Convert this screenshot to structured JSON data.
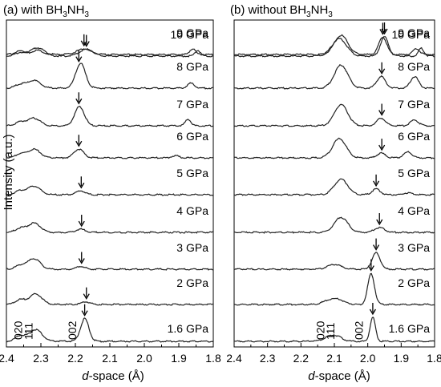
{
  "figure": {
    "ylabel": "Intensity (a.u.)",
    "xlabel_italic": "d",
    "xlabel_rest": "-space (Å)"
  },
  "chart_data": [
    {
      "type": "line",
      "title_prefix": "(a) with BH",
      "title_sub1": "3",
      "title_mid": "NH",
      "title_sub2": "3",
      "xlim": [
        2.4,
        1.8
      ],
      "xticks": [
        "2.4",
        "2.3",
        "2.2",
        "2.1",
        "2.0",
        "1.9",
        "1.8"
      ],
      "xtick_values": [
        2.4,
        2.3,
        2.2,
        2.1,
        2.0,
        1.9,
        1.8
      ],
      "grid": false,
      "peak_labels": [
        {
          "text": "020",
          "x": 2.355
        },
        {
          "text": "111",
          "x": 2.325
        },
        {
          "text": "002",
          "x": 2.198
        }
      ],
      "series": [
        {
          "name": "1.6 GPa",
          "peaks": [
            [
              2.36,
              0.3,
              0.014
            ],
            [
              2.315,
              0.62,
              0.018
            ],
            [
              2.173,
              1.18,
              0.012
            ]
          ],
          "arrow": 2.173
        },
        {
          "name": "2 GPa",
          "peaks": [
            [
              2.36,
              0.25,
              0.014
            ],
            [
              2.315,
              0.55,
              0.018
            ],
            [
              2.17,
              0.14,
              0.012
            ]
          ],
          "arrow": 2.168
        },
        {
          "name": "3 GPa",
          "peaks": [
            [
              2.36,
              0.2,
              0.014
            ],
            [
              2.32,
              0.55,
              0.018
            ],
            [
              2.185,
              0.15,
              0.012
            ]
          ],
          "arrow": 2.182
        },
        {
          "name": "4 GPa",
          "peaks": [
            [
              2.36,
              0.2,
              0.014
            ],
            [
              2.32,
              0.48,
              0.018
            ],
            [
              2.185,
              0.17,
              0.013
            ]
          ],
          "arrow": 2.182
        },
        {
          "name": "5 GPa",
          "peaks": [
            [
              2.36,
              0.2,
              0.014
            ],
            [
              2.32,
              0.45,
              0.018
            ],
            [
              2.185,
              0.2,
              0.013
            ]
          ],
          "arrow": 2.183
        },
        {
          "name": "6 GPa",
          "peaks": [
            [
              2.36,
              0.2,
              0.014
            ],
            [
              2.32,
              0.45,
              0.018
            ],
            [
              2.19,
              0.45,
              0.014
            ],
            [
              1.91,
              0.12,
              0.01
            ]
          ],
          "arrow": 2.19
        },
        {
          "name": "7 GPa",
          "peaks": [
            [
              2.36,
              0.2,
              0.014
            ],
            [
              2.32,
              0.4,
              0.018
            ],
            [
              2.188,
              1.0,
              0.014
            ],
            [
              1.873,
              0.35,
              0.008
            ]
          ],
          "arrow": 2.19
        },
        {
          "name": "8 GPa",
          "peaks": [
            [
              2.36,
              0.2,
              0.014
            ],
            [
              2.32,
              0.4,
              0.018
            ],
            [
              2.185,
              1.3,
              0.014
            ],
            [
              1.865,
              0.25,
              0.01
            ]
          ],
          "arrow": 2.19
        },
        {
          "name": "9 GPa",
          "peaks": [
            [
              2.36,
              0.18,
              0.014
            ],
            [
              2.31,
              0.35,
              0.018
            ],
            [
              2.175,
              0.3,
              0.02
            ],
            [
              1.86,
              0.3,
              0.008
            ]
          ],
          "arrow": 2.175
        },
        {
          "name": "10 GPa",
          "peaks": [
            [
              2.36,
              0.18,
              0.014
            ],
            [
              2.31,
              0.3,
              0.02
            ],
            [
              2.168,
              0.35,
              0.02
            ],
            [
              1.845,
              0.3,
              0.008
            ]
          ],
          "arrow": 2.168
        }
      ]
    },
    {
      "type": "line",
      "title_prefix": "(b) without BH",
      "title_sub1": "3",
      "title_mid": "NH",
      "title_sub2": "3",
      "xlim": [
        2.4,
        1.8
      ],
      "xticks": [
        "2.4",
        "2.3",
        "2.2",
        "2.1",
        "2.0",
        "1.9",
        "1.8"
      ],
      "xtick_values": [
        2.4,
        2.3,
        2.2,
        2.1,
        2.0,
        1.9,
        1.8
      ],
      "grid": false,
      "peak_labels": [
        {
          "text": "020",
          "x": 2.13
        },
        {
          "text": "111",
          "x": 2.1
        },
        {
          "text": "002",
          "x": 2.015
        }
      ],
      "series": [
        {
          "name": "1.6 GPa",
          "peaks": [
            [
              2.12,
              0.15,
              0.018
            ],
            [
              2.095,
              0.25,
              0.018
            ],
            [
              1.985,
              1.25,
              0.008
            ]
          ],
          "arrow": 1.985
        },
        {
          "name": "2 GPa",
          "peaks": [
            [
              2.12,
              0.15,
              0.018
            ],
            [
              2.09,
              0.25,
              0.02
            ],
            [
              1.99,
              1.6,
              0.01
            ]
          ],
          "arrow": 1.99
        },
        {
          "name": "3 GPa",
          "peaks": [
            [
              2.1,
              0.25,
              0.02
            ],
            [
              1.975,
              0.85,
              0.012
            ]
          ],
          "arrow": 1.975
        },
        {
          "name": "4 GPa",
          "peaks": [
            [
              2.08,
              0.78,
              0.02
            ],
            [
              1.965,
              0.25,
              0.015
            ]
          ],
          "arrow": 1.965
        },
        {
          "name": "5 GPa",
          "peaks": [
            [
              2.08,
              0.8,
              0.02
            ],
            [
              1.975,
              0.3,
              0.012
            ],
            [
              1.88,
              0.1,
              0.012
            ]
          ],
          "arrow": 1.975
        },
        {
          "name": "6 GPa",
          "peaks": [
            [
              2.085,
              1.0,
              0.02
            ],
            [
              1.96,
              0.25,
              0.012
            ],
            [
              1.88,
              0.3,
              0.012
            ]
          ],
          "arrow": 1.958
        },
        {
          "name": "7 GPa",
          "peaks": [
            [
              2.08,
              1.1,
              0.02
            ],
            [
              1.96,
              0.4,
              0.013
            ],
            [
              1.86,
              0.3,
              0.012
            ]
          ],
          "arrow": 1.958
        },
        {
          "name": "8 GPa",
          "peaks": [
            [
              2.08,
              1.2,
              0.02
            ],
            [
              1.96,
              0.6,
              0.013
            ],
            [
              1.86,
              0.6,
              0.012
            ]
          ],
          "arrow": 1.958
        },
        {
          "name": "9 GPa",
          "peaks": [
            [
              2.08,
              1.0,
              0.02
            ],
            [
              1.955,
              0.9,
              0.012
            ],
            [
              1.855,
              0.3,
              0.01
            ]
          ],
          "arrow": 1.955
        },
        {
          "name": "10 GPa",
          "peaks": [
            [
              2.085,
              0.9,
              0.022
            ],
            [
              1.95,
              1.0,
              0.012
            ],
            [
              1.84,
              0.4,
              0.008
            ]
          ],
          "arrow": 1.95
        }
      ]
    }
  ]
}
